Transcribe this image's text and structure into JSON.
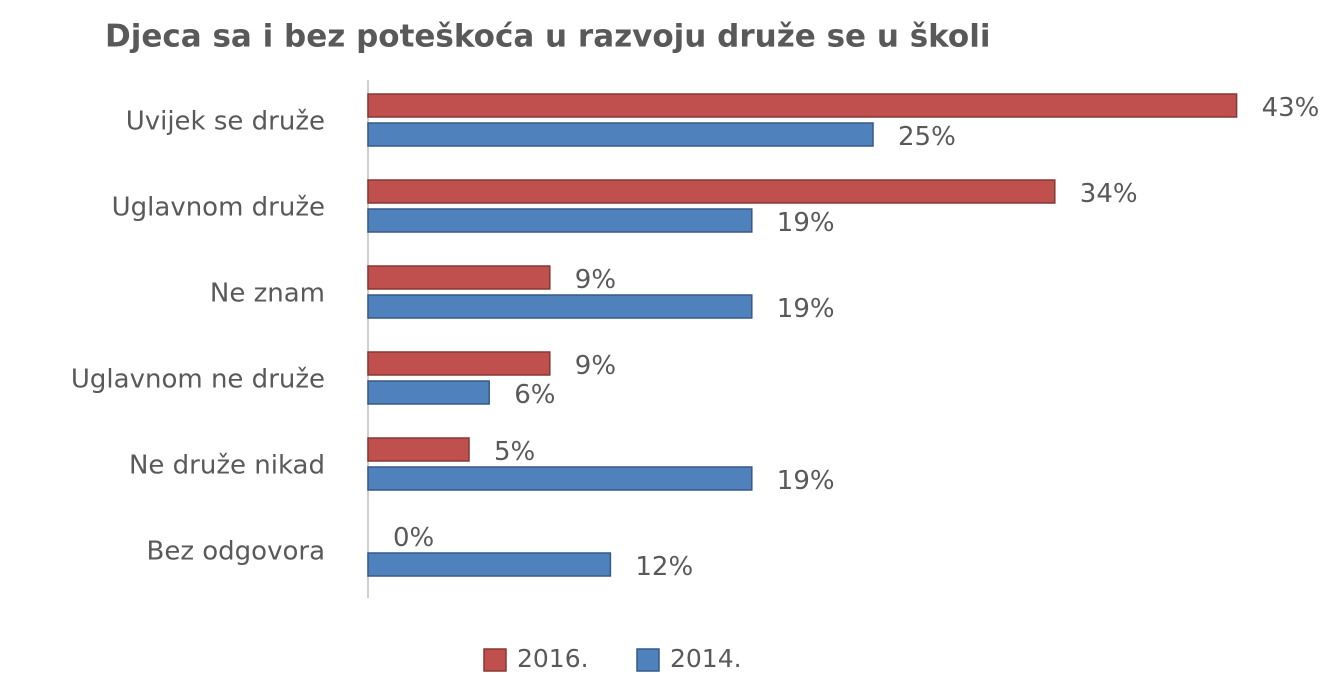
{
  "chart_data": {
    "type": "bar",
    "orientation": "horizontal",
    "title": "Djeca sa i bez poteškoća u razvoju druže se u školi",
    "categories": [
      "Uvijek se druže",
      "Uglavnom druže",
      "Ne znam",
      "Uglavnom ne druže",
      "Ne druže nikad",
      "Bez odgovora"
    ],
    "series": [
      {
        "name": "2016.",
        "color": "#c0504d",
        "values": [
          43,
          34,
          9,
          9,
          5,
          0
        ],
        "value_labels": [
          "43%",
          "34%",
          "9%",
          "9%",
          "5%",
          "0%"
        ]
      },
      {
        "name": "2014.",
        "color": "#4f81bd",
        "values": [
          25,
          19,
          19,
          6,
          19,
          12
        ],
        "value_labels": [
          "25%",
          "19%",
          "19%",
          "6%",
          "19%",
          "12%"
        ]
      }
    ],
    "legend": "bottom"
  }
}
